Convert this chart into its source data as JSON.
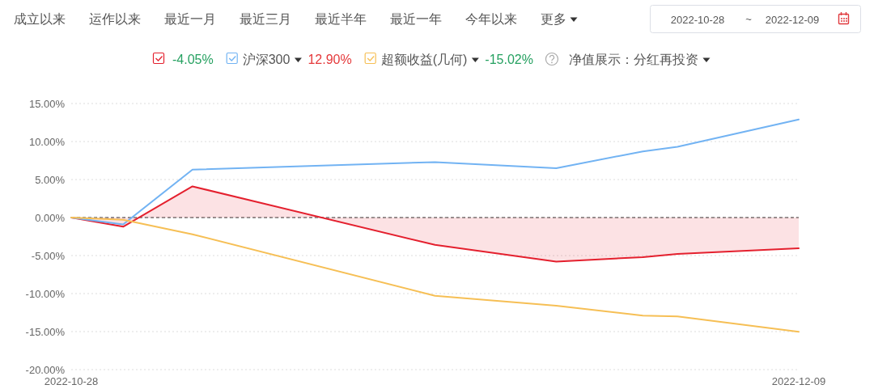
{
  "chart_data": {
    "type": "line",
    "x": [
      "2022-10-28",
      "2022-10-31",
      "2022-11-04",
      "2022-11-18",
      "2022-11-25",
      "2022-11-30",
      "2022-12-02",
      "2022-12-09"
    ],
    "xlim": [
      "2022-10-28",
      "2022-12-09"
    ],
    "xticks": [
      "2022-10-28",
      "2022-12-09"
    ],
    "ylim": [
      -20,
      15
    ],
    "yticks": [
      {
        "value": -20,
        "label": "-20.00%"
      },
      {
        "value": -15,
        "label": "-15.00%"
      },
      {
        "value": -10,
        "label": "-10.00%"
      },
      {
        "value": -5,
        "label": "-5.00%"
      },
      {
        "value": 0,
        "label": "0.00%"
      },
      {
        "value": 5,
        "label": "5.00%"
      },
      {
        "value": 10,
        "label": "10.00%"
      },
      {
        "value": 15,
        "label": "15.00%"
      }
    ],
    "grid": "y",
    "legend": "top",
    "series": [
      {
        "type": "area",
        "color": "#e4202e",
        "values": [
          0,
          -1.2,
          4.1,
          -3.6,
          -5.8,
          -5.2,
          -4.8,
          -4.05
        ]
      },
      {
        "name": "沪深300",
        "color": "#72b3f3",
        "values": [
          0,
          -0.9,
          6.3,
          7.3,
          6.5,
          8.7,
          9.3,
          12.9
        ]
      },
      {
        "name": "超额收益(几何)",
        "color": "#f6bf55",
        "values": [
          0,
          -0.3,
          -2.2,
          -10.3,
          -11.6,
          -12.9,
          -13,
          -15.02
        ]
      }
    ],
    "ref_lines": [
      {
        "axis": "y",
        "value": 0,
        "color": "#333333",
        "line_style": "dashed"
      }
    ],
    "annotations": [
      "成立以来",
      "运作以来",
      "最近一月",
      "最近三月",
      "最近半年",
      "最近一年",
      "今年以来",
      "更多",
      "2022-10-28",
      "~",
      "2022-12-09",
      "-4.05%",
      "12.90%",
      "-15.02%",
      "净值展示：分红再投资"
    ]
  }
}
